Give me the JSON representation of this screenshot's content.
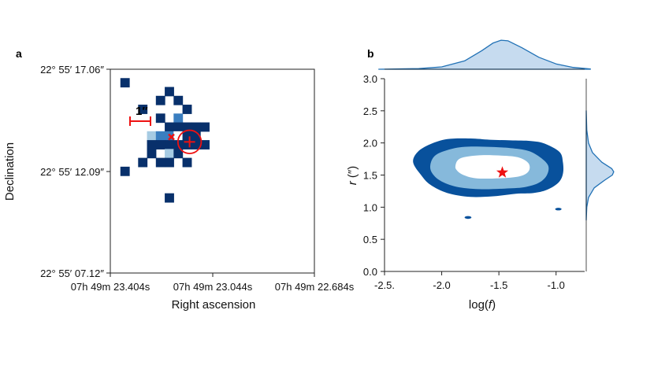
{
  "chart_data": [
    {
      "panel": "a",
      "type": "heatmap",
      "xlabel": "Right ascension",
      "ylabel": "Declination",
      "x_ticks": [
        "07h 49m 23.404s",
        "07h 49m 23.044s",
        "07h 49m 22.684s"
      ],
      "y_ticks": [
        "22° 55′ 17.06″",
        "22° 55′ 12.09″",
        "22° 55′ 07.12″"
      ],
      "scale_bar_label": "1″",
      "grid_size": [
        23,
        23
      ],
      "cells": [
        [
          1,
          1,
          3
        ],
        [
          6,
          2,
          3
        ],
        [
          5,
          3,
          3
        ],
        [
          7,
          3,
          3
        ],
        [
          3,
          4,
          3
        ],
        [
          8,
          4,
          3
        ],
        [
          5,
          5,
          3
        ],
        [
          7,
          5,
          1
        ],
        [
          6,
          6,
          3
        ],
        [
          7,
          6,
          3
        ],
        [
          8,
          6,
          3
        ],
        [
          9,
          6,
          3
        ],
        [
          10,
          6,
          3
        ],
        [
          4,
          7,
          2
        ],
        [
          5,
          7,
          1
        ],
        [
          6,
          7,
          1
        ],
        [
          7,
          7,
          0
        ],
        [
          8,
          7,
          3
        ],
        [
          9,
          7,
          3
        ],
        [
          4,
          8,
          3
        ],
        [
          5,
          8,
          3
        ],
        [
          6,
          8,
          3
        ],
        [
          7,
          8,
          3
        ],
        [
          8,
          8,
          3
        ],
        [
          9,
          8,
          3
        ],
        [
          10,
          8,
          3
        ],
        [
          4,
          9,
          3
        ],
        [
          6,
          9,
          2
        ],
        [
          7,
          9,
          3
        ],
        [
          3,
          10,
          3
        ],
        [
          5,
          10,
          3
        ],
        [
          6,
          10,
          3
        ],
        [
          8,
          10,
          3
        ],
        [
          1,
          11,
          3
        ],
        [
          6,
          14,
          3
        ]
      ],
      "colors": [
        "#ffffff",
        "#3a7ec0",
        "#a6cbe3",
        "#08306b"
      ],
      "markers": [
        {
          "kind": "x",
          "col": 6.25,
          "row": 7.15,
          "color": "#ee1111"
        },
        {
          "kind": "plus",
          "col": 8.3,
          "row": 7.7,
          "color": "#ee1111",
          "circle_r_cells": 1.05
        }
      ]
    },
    {
      "panel": "b",
      "type": "contour",
      "xlabel_prefix": "log(",
      "xlabel_var": "f",
      "xlabel_suffix": ")",
      "ylabel_var": "r",
      "ylabel_unit": " (″)",
      "xlim": [
        -2.5,
        -0.75
      ],
      "ylim": [
        0.0,
        3.0
      ],
      "x_ticks": [
        -2.5,
        -2.0,
        -1.5,
        -1.0
      ],
      "x_tick_labels": [
        "-2.5.",
        "-2.0",
        "-1.5",
        "-1.0"
      ],
      "y_ticks": [
        0.0,
        0.5,
        1.0,
        1.5,
        2.0,
        2.5,
        3.0
      ],
      "y_tick_labels": [
        "0.0",
        "0.5",
        "1.0",
        "1.5",
        "2.0",
        "2.5",
        "3.0"
      ],
      "contour_levels": [
        {
          "color": "#08519c",
          "points": [
            [
              -2.25,
              1.7
            ],
            [
              -2.21,
              1.86
            ],
            [
              -2.1,
              1.98
            ],
            [
              -1.95,
              2.06
            ],
            [
              -1.75,
              2.07
            ],
            [
              -1.58,
              2.05
            ],
            [
              -1.4,
              2.04
            ],
            [
              -1.22,
              2.03
            ],
            [
              -1.1,
              1.99
            ],
            [
              -0.97,
              1.86
            ],
            [
              -0.94,
              1.7
            ],
            [
              -0.94,
              1.52
            ],
            [
              -0.98,
              1.38
            ],
            [
              -1.08,
              1.27
            ],
            [
              -1.2,
              1.22
            ],
            [
              -1.35,
              1.21
            ],
            [
              -1.55,
              1.17
            ],
            [
              -1.75,
              1.16
            ],
            [
              -1.95,
              1.22
            ],
            [
              -2.1,
              1.35
            ],
            [
              -2.18,
              1.5
            ]
          ]
        },
        {
          "color": "#86b9db",
          "points": [
            [
              -2.1,
              1.65
            ],
            [
              -2.06,
              1.8
            ],
            [
              -1.95,
              1.89
            ],
            [
              -1.8,
              1.94
            ],
            [
              -1.6,
              1.94
            ],
            [
              -1.4,
              1.92
            ],
            [
              -1.25,
              1.88
            ],
            [
              -1.15,
              1.79
            ],
            [
              -1.07,
              1.65
            ],
            [
              -1.08,
              1.5
            ],
            [
              -1.15,
              1.38
            ],
            [
              -1.28,
              1.31
            ],
            [
              -1.45,
              1.29
            ],
            [
              -1.65,
              1.28
            ],
            [
              -1.85,
              1.31
            ],
            [
              -2.0,
              1.4
            ],
            [
              -2.08,
              1.52
            ]
          ]
        },
        {
          "color": "#ffffff",
          "points": [
            [
              -1.88,
              1.64
            ],
            [
              -1.86,
              1.73
            ],
            [
              -1.8,
              1.78
            ],
            [
              -1.65,
              1.81
            ],
            [
              -1.45,
              1.8
            ],
            [
              -1.32,
              1.77
            ],
            [
              -1.24,
              1.68
            ],
            [
              -1.24,
              1.56
            ],
            [
              -1.32,
              1.48
            ],
            [
              -1.5,
              1.45
            ],
            [
              -1.7,
              1.45
            ],
            [
              -1.82,
              1.51
            ],
            [
              -1.87,
              1.58
            ]
          ]
        }
      ],
      "islands": [
        {
          "x": -1.77,
          "y": 0.84,
          "rx": 0.03,
          "ry": 0.022,
          "color": "#08519c"
        },
        {
          "x": -0.98,
          "y": 0.97,
          "rx": 0.028,
          "ry": 0.02,
          "color": "#08519c"
        }
      ],
      "star": {
        "x": -1.47,
        "y": 1.54,
        "color": "#ee1111"
      },
      "marginal_x": [
        [
          -2.55,
          0.0
        ],
        [
          -2.2,
          0.02
        ],
        [
          -2.0,
          0.08
        ],
        [
          -1.8,
          0.28
        ],
        [
          -1.65,
          0.62
        ],
        [
          -1.55,
          0.88
        ],
        [
          -1.48,
          0.97
        ],
        [
          -1.42,
          0.95
        ],
        [
          -1.3,
          0.72
        ],
        [
          -1.15,
          0.4
        ],
        [
          -1.0,
          0.18
        ],
        [
          -0.85,
          0.06
        ],
        [
          -0.7,
          0.01
        ]
      ],
      "marginal_y": [
        [
          0.8,
          0.0
        ],
        [
          1.0,
          0.02
        ],
        [
          1.15,
          0.08
        ],
        [
          1.3,
          0.28
        ],
        [
          1.42,
          0.65
        ],
        [
          1.5,
          0.92
        ],
        [
          1.55,
          0.97
        ],
        [
          1.6,
          0.9
        ],
        [
          1.7,
          0.55
        ],
        [
          1.85,
          0.22
        ],
        [
          2.0,
          0.08
        ],
        [
          2.2,
          0.02
        ],
        [
          2.5,
          0.0
        ]
      ],
      "marginal_fill": "#c6dbef",
      "marginal_stroke": "#2171b5"
    }
  ]
}
